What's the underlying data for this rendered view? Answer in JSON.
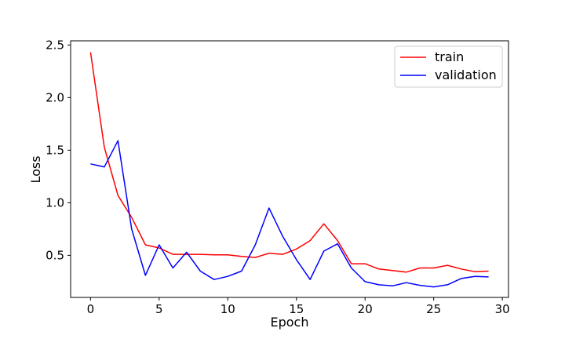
{
  "chart_data": {
    "type": "line",
    "title": "",
    "xlabel": "Epoch",
    "ylabel": "Loss",
    "xlim": [
      -1.45,
      30.45
    ],
    "ylim": [
      0.1,
      2.54
    ],
    "xticks": [
      0,
      5,
      10,
      15,
      20,
      25,
      30
    ],
    "yticks": [
      0.5,
      1.0,
      1.5,
      2.0,
      2.5
    ],
    "grid": false,
    "legend_position": "top-right",
    "x": [
      0,
      1,
      2,
      3,
      4,
      5,
      6,
      7,
      8,
      9,
      10,
      11,
      12,
      13,
      14,
      15,
      16,
      17,
      18,
      19,
      20,
      21,
      22,
      23,
      24,
      25,
      26,
      27,
      28,
      29
    ],
    "series": [
      {
        "name": "train",
        "color": "#ff0000",
        "values": [
          2.43,
          1.53,
          1.07,
          0.86,
          0.6,
          0.57,
          0.51,
          0.51,
          0.51,
          0.505,
          0.505,
          0.49,
          0.48,
          0.52,
          0.51,
          0.56,
          0.64,
          0.8,
          0.64,
          0.42,
          0.42,
          0.37,
          0.355,
          0.34,
          0.38,
          0.38,
          0.405,
          0.37,
          0.345,
          0.35
        ]
      },
      {
        "name": "validation",
        "color": "#0000ff",
        "values": [
          1.37,
          1.34,
          1.59,
          0.75,
          0.31,
          0.6,
          0.38,
          0.53,
          0.35,
          0.27,
          0.3,
          0.35,
          0.6,
          0.95,
          0.68,
          0.46,
          0.27,
          0.54,
          0.61,
          0.38,
          0.25,
          0.22,
          0.21,
          0.24,
          0.215,
          0.2,
          0.22,
          0.28,
          0.3,
          0.295
        ]
      }
    ]
  }
}
